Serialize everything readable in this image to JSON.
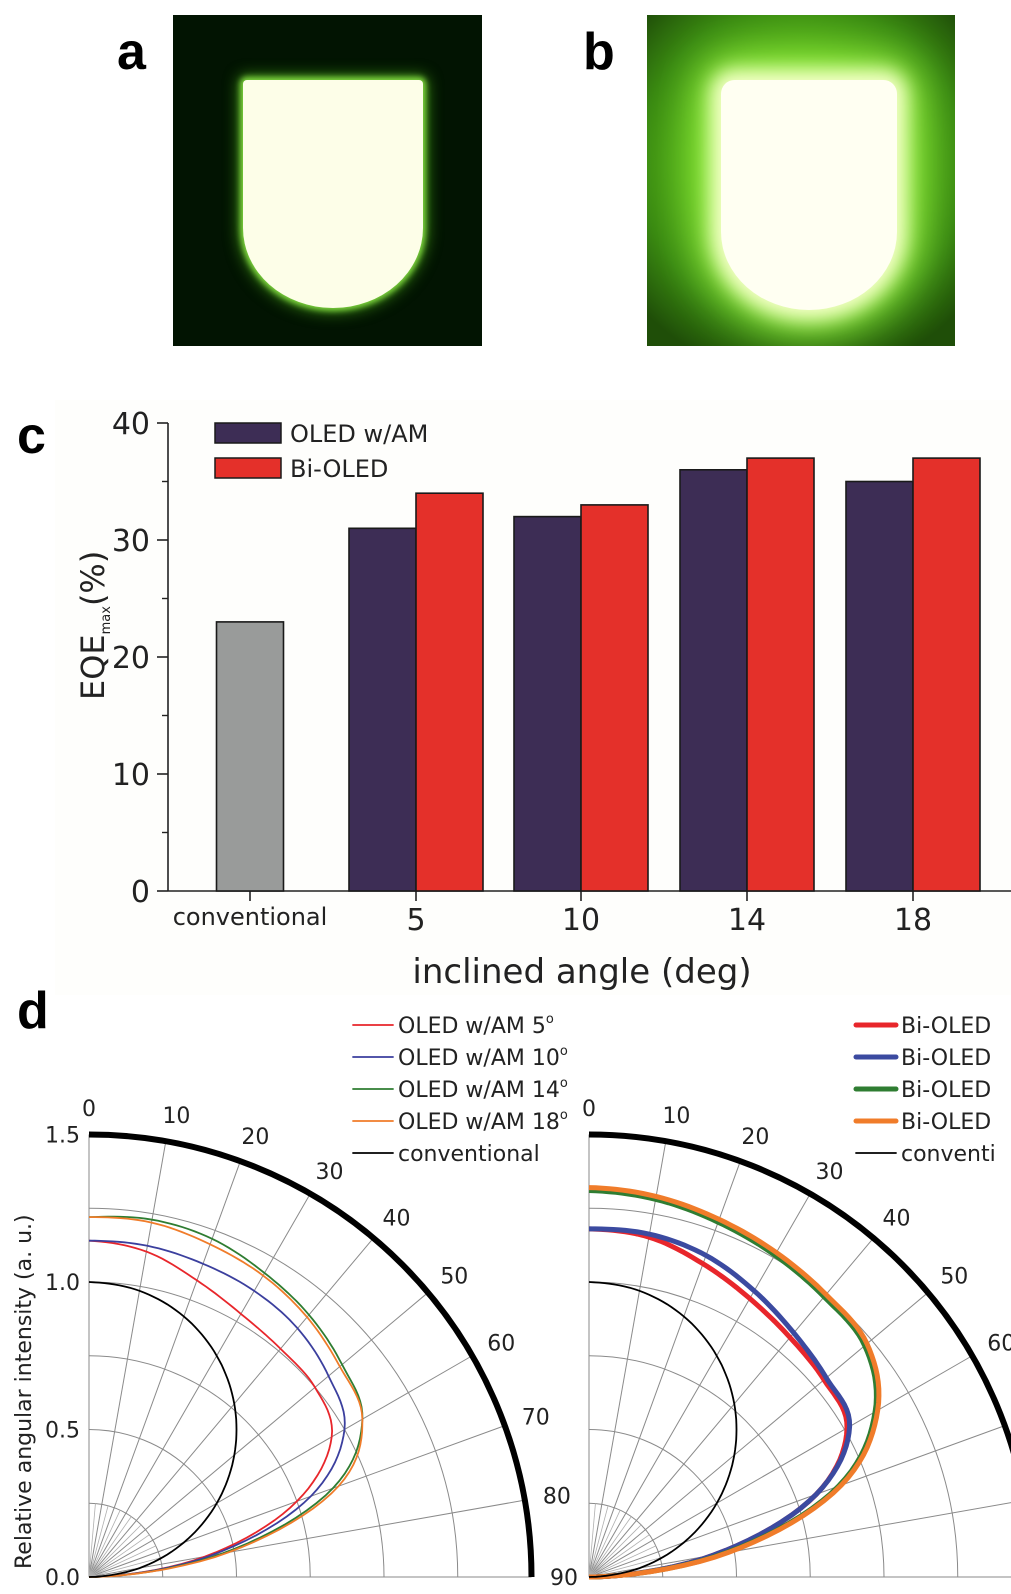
{
  "panels": {
    "a": {
      "label": "a",
      "description": "OLED device photo (dark background)"
    },
    "b": {
      "label": "b",
      "description": "Bi-OLED device photo (green glow)"
    },
    "c": {
      "label": "c"
    },
    "d": {
      "label": "d"
    }
  },
  "chart_data": [
    {
      "id": "c",
      "type": "bar",
      "title": "",
      "xlabel": "inclined angle (deg)",
      "ylabel": "EQE",
      "ylabel_sub": "max",
      "ylabel_suffix": "(%)",
      "ylim": [
        0,
        40
      ],
      "yticks": [
        0,
        10,
        20,
        30,
        40
      ],
      "yticks_minor": [
        5,
        15,
        25,
        35
      ],
      "categories": [
        "conventional",
        "5",
        "10",
        "14",
        "18"
      ],
      "series": [
        {
          "name": "conventional",
          "color": "#999b9a",
          "values": [
            23,
            null,
            null,
            null,
            null
          ],
          "in_legend": false
        },
        {
          "name": "OLED w/AM",
          "color": "#3d2d55",
          "values": [
            null,
            31,
            32,
            36,
            35
          ]
        },
        {
          "name": "Bi-OLED",
          "color": "#e4302a",
          "values": [
            null,
            34,
            33,
            37,
            37
          ]
        }
      ],
      "legend": {
        "placement": "top-left",
        "entries": [
          "OLED w/AM",
          "Bi-OLED"
        ]
      },
      "grid": false
    },
    {
      "id": "d-left",
      "type": "line",
      "subtype": "polar-quadrant",
      "ylabel": "Relative angular intensity (a. u.)",
      "radial_ticks": [
        "0.0",
        "0.5",
        "1.0",
        "1.5"
      ],
      "radial_range": [
        0,
        1.5
      ],
      "radial_grid": [
        0.25,
        0.5,
        0.75,
        1.0,
        1.25
      ],
      "angle_ticks": [
        "0",
        "10",
        "20",
        "30",
        "40",
        "50",
        "60",
        "70",
        "80",
        "90"
      ],
      "angle_range_deg": [
        0,
        90
      ],
      "theta_deg": [
        0,
        10,
        20,
        30,
        40,
        50,
        60,
        70,
        80,
        90
      ],
      "series": [
        {
          "name": "OLED w/AM 5",
          "sup": "o",
          "color": "#e8262b",
          "width": "thin",
          "r": [
            1.14,
            1.12,
            1.07,
            1.03,
            1.01,
            1.0,
            0.95,
            0.75,
            0.4,
            0.0
          ]
        },
        {
          "name": "OLED w/AM 10",
          "sup": "o",
          "color": "#3b3f9e",
          "width": "thin",
          "r": [
            1.14,
            1.14,
            1.13,
            1.12,
            1.1,
            1.06,
            1.0,
            0.8,
            0.42,
            0.0
          ]
        },
        {
          "name": "OLED w/AM 14",
          "sup": "o",
          "color": "#2f7d32",
          "width": "thin",
          "r": [
            1.22,
            1.23,
            1.22,
            1.19,
            1.16,
            1.12,
            1.07,
            0.88,
            0.46,
            0.0
          ]
        },
        {
          "name": "OLED w/AM 18",
          "sup": "o",
          "color": "#f07c2a",
          "width": "thin",
          "r": [
            1.22,
            1.22,
            1.2,
            1.18,
            1.15,
            1.11,
            1.07,
            0.9,
            0.48,
            0.0
          ]
        },
        {
          "name": "conventional",
          "sup": "",
          "color": "#000000",
          "width": "thin",
          "r": [
            1.0,
            0.985,
            0.94,
            0.866,
            0.766,
            0.643,
            0.5,
            0.342,
            0.174,
            0.0
          ]
        }
      ]
    },
    {
      "id": "d-right",
      "type": "line",
      "subtype": "polar-quadrant",
      "angle_ticks": [
        "0",
        "10",
        "20",
        "30",
        "40",
        "50",
        "60"
      ],
      "radial_range": [
        0,
        1.5
      ],
      "radial_grid": [
        0.25,
        0.5,
        0.75,
        1.0,
        1.25
      ],
      "theta_deg": [
        0,
        10,
        20,
        30,
        40,
        50,
        60,
        70,
        80,
        90
      ],
      "series": [
        {
          "name": "Bi-OLED",
          "color": "#e8262b",
          "width": "thick",
          "r": [
            1.18,
            1.17,
            1.13,
            1.09,
            1.06,
            1.04,
            1.01,
            0.82,
            0.43,
            0.0
          ]
        },
        {
          "name": "Bi-OLED",
          "color": "#3b4aa0",
          "width": "thick",
          "r": [
            1.18,
            1.18,
            1.16,
            1.12,
            1.08,
            1.05,
            1.02,
            0.82,
            0.43,
            0.0
          ]
        },
        {
          "name": "Bi-OLED",
          "color": "#2f7d32",
          "width": "thick",
          "r": [
            1.31,
            1.3,
            1.28,
            1.26,
            1.24,
            1.22,
            1.12,
            0.9,
            0.47,
            0.0
          ]
        },
        {
          "name": "Bi-OLED",
          "color": "#f07c2a",
          "width": "thick",
          "r": [
            1.32,
            1.31,
            1.29,
            1.27,
            1.25,
            1.23,
            1.13,
            0.91,
            0.48,
            0.0
          ]
        },
        {
          "name": "conventi",
          "color": "#000000",
          "width": "thin",
          "r": [
            1.0,
            0.985,
            0.94,
            0.866,
            0.766,
            0.643,
            0.5,
            0.342,
            0.174,
            0.0
          ]
        }
      ]
    }
  ]
}
